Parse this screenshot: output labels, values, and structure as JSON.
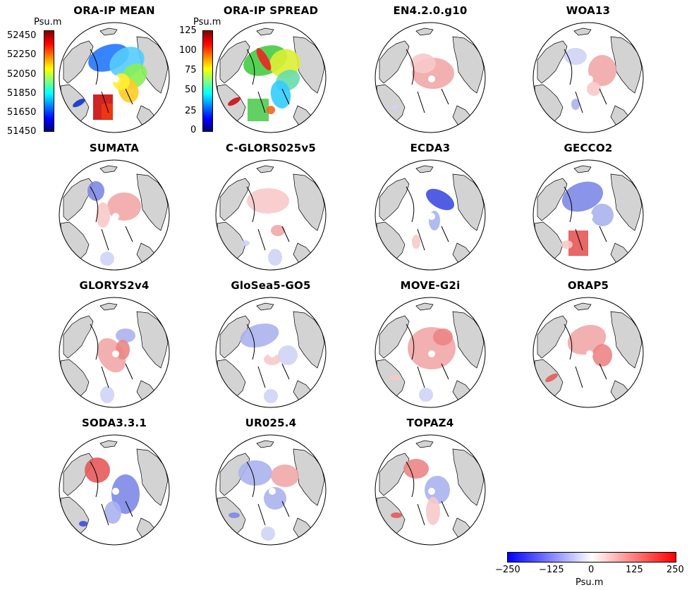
{
  "chart_data": [
    {
      "type": "heatmap",
      "title": "ORA-IP MEAN",
      "colorbar": {
        "label": "Psu.m",
        "ticks": [
          "52450",
          "52250",
          "52050",
          "51850",
          "51650",
          "51450"
        ],
        "range": [
          51450,
          52450
        ],
        "colormap": "jet"
      },
      "pattern": "mean"
    },
    {
      "type": "heatmap",
      "title": "ORA-IP SPREAD",
      "colorbar": {
        "label": "Psu.m",
        "ticks": [
          "125",
          "100",
          "75",
          "50",
          "25",
          "0"
        ],
        "range": [
          0,
          125
        ],
        "colormap": "jet"
      },
      "pattern": "spread"
    },
    {
      "type": "heatmap",
      "title": "EN4.2.0.g10",
      "pattern": "en4"
    },
    {
      "type": "heatmap",
      "title": "WOA13",
      "pattern": "woa"
    },
    {
      "type": "heatmap",
      "title": "SUMATA",
      "pattern": "sumata"
    },
    {
      "type": "heatmap",
      "title": "C-GLORS025v5",
      "pattern": "cglors"
    },
    {
      "type": "heatmap",
      "title": "ECDA3",
      "pattern": "ecda"
    },
    {
      "type": "heatmap",
      "title": "GECCO2",
      "pattern": "gecco"
    },
    {
      "type": "heatmap",
      "title": "GLORYS2v4",
      "pattern": "glorys"
    },
    {
      "type": "heatmap",
      "title": "GloSea5-GO5",
      "pattern": "glosea"
    },
    {
      "type": "heatmap",
      "title": "MOVE-G2i",
      "pattern": "move"
    },
    {
      "type": "heatmap",
      "title": "ORAP5",
      "pattern": "orap"
    },
    {
      "type": "heatmap",
      "title": "SODA3.3.1",
      "pattern": "soda"
    },
    {
      "type": "heatmap",
      "title": "UR025.4",
      "pattern": "ur"
    },
    {
      "type": "heatmap",
      "title": "TOPAZ4",
      "pattern": "topaz"
    }
  ],
  "shared_colorbar": {
    "label": "Psu.m",
    "ticks": [
      "−250",
      "−125",
      "0",
      "125",
      "250"
    ],
    "range": [
      -250,
      250
    ],
    "colormap": "blue-white-red"
  }
}
